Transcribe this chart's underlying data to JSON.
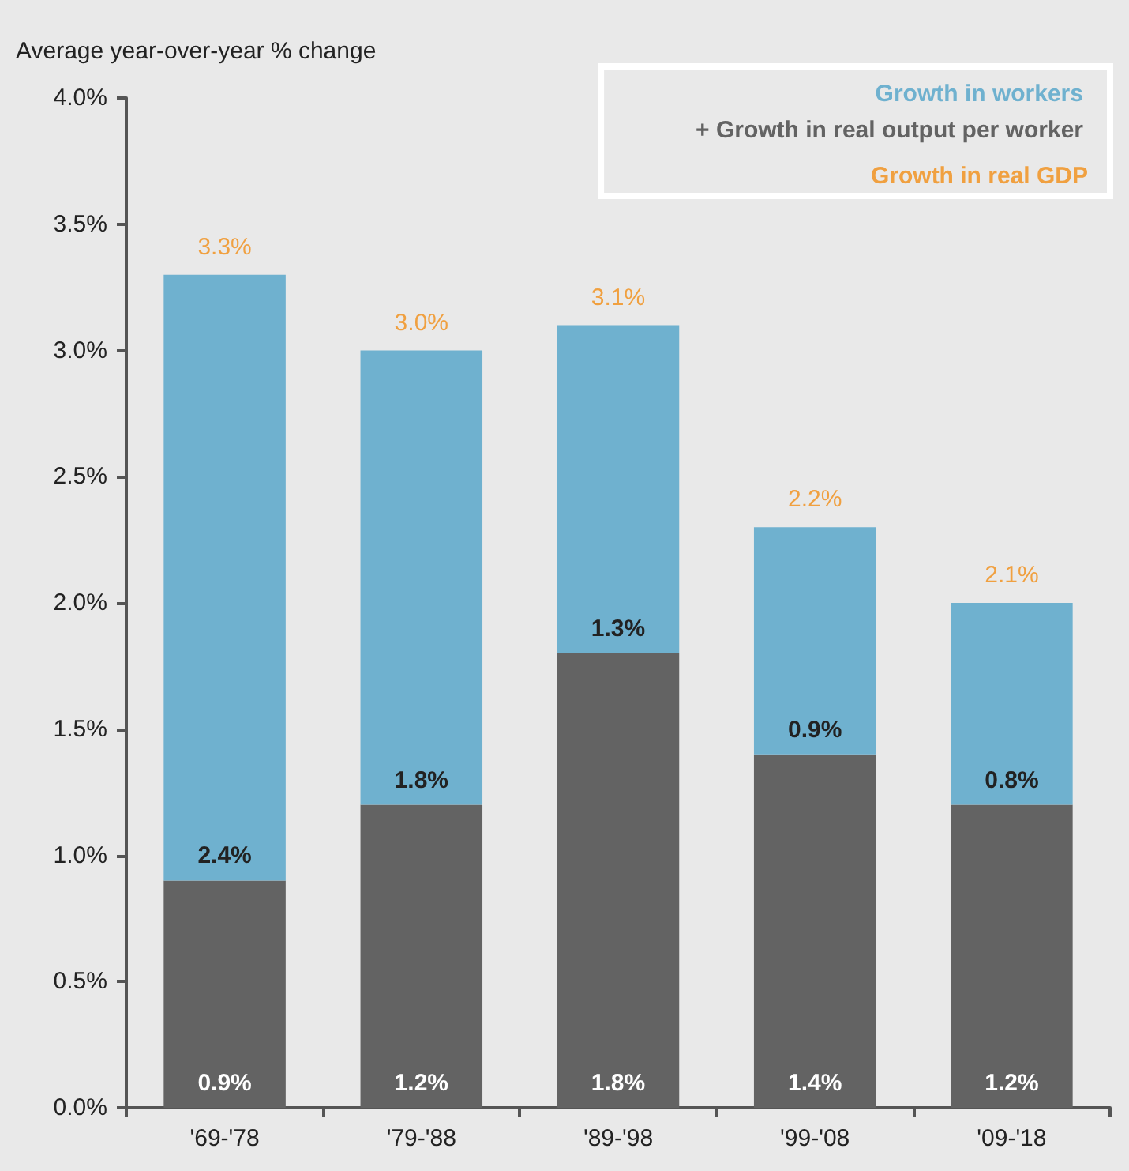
{
  "chart_data": {
    "type": "bar",
    "stacked": true,
    "ylabel": "Average year-over-year % change",
    "categories": [
      "'69-'78",
      "'79-'88",
      "'89-'98",
      "'99-'08",
      "'09-'18"
    ],
    "series": [
      {
        "name": "+ Growth in real output per worker",
        "color": "#636363",
        "values": [
          0.9,
          1.2,
          1.8,
          1.4,
          1.2
        ],
        "value_labels": [
          "0.9%",
          "1.2%",
          "1.8%",
          "1.4%",
          "1.2%"
        ]
      },
      {
        "name": "Growth in workers",
        "color": "#6fb1cf",
        "values": [
          2.4,
          1.8,
          1.3,
          0.9,
          0.8
        ],
        "value_labels": [
          "2.4%",
          "1.8%",
          "1.3%",
          "0.9%",
          "0.8%"
        ]
      }
    ],
    "totals": [
      "3.3%",
      "3.0%",
      "3.1%",
      "2.2%",
      "2.1%"
    ],
    "annotations": [
      "Growth in real GDP"
    ],
    "ylim": [
      0,
      4
    ],
    "yticks": [
      {
        "value": 0,
        "label": "0.0%"
      },
      {
        "value": 0.5,
        "label": "0.5%"
      },
      {
        "value": 1,
        "label": "1.0%"
      },
      {
        "value": 1.5,
        "label": "1.5%"
      },
      {
        "value": 2,
        "label": "2.0%"
      },
      {
        "value": 2.5,
        "label": "2.5%"
      },
      {
        "value": 3,
        "label": "3.0%"
      },
      {
        "value": 3.5,
        "label": "3.5%"
      },
      {
        "value": 4,
        "label": "4.0%"
      }
    ],
    "legend": "top right"
  }
}
